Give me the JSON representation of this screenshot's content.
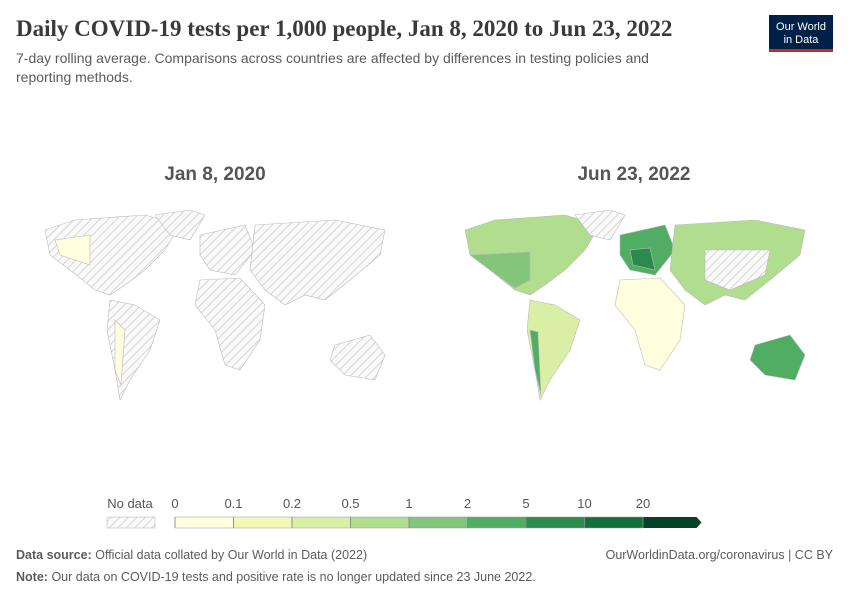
{
  "header": {
    "title": "Daily COVID-19 tests per 1,000 people, Jan 8, 2020 to Jun 23, 2022",
    "subtitle": [
      "7-day rolling average. Comparisons across countries are affected by differences in testing policies and",
      "reporting methods."
    ],
    "logo": [
      "Our World",
      "in Data"
    ]
  },
  "maps": [
    {
      "label": "Jan 8, 2020"
    },
    {
      "label": "Jun 23, 2022"
    }
  ],
  "legend": {
    "no_data": "No data",
    "bins": [
      0,
      0.1,
      0.2,
      0.5,
      1,
      2,
      5,
      10,
      20
    ],
    "colors": [
      "#ffffe0",
      "#f2f8b8",
      "#d9efa5",
      "#b1dd8e",
      "#82c57b",
      "#51ad63",
      "#2c8a4d",
      "#13703a",
      "#04422a"
    ]
  },
  "footer": {
    "source_label": "Data source:",
    "source": "Official data collated by Our World in Data (2022)",
    "credit": "OurWorldinData.org/coronavirus | CC BY",
    "note_label": "Note:",
    "note": "Our data on COVID-19 tests and positive rate is no longer updated since 23 June 2022."
  }
}
